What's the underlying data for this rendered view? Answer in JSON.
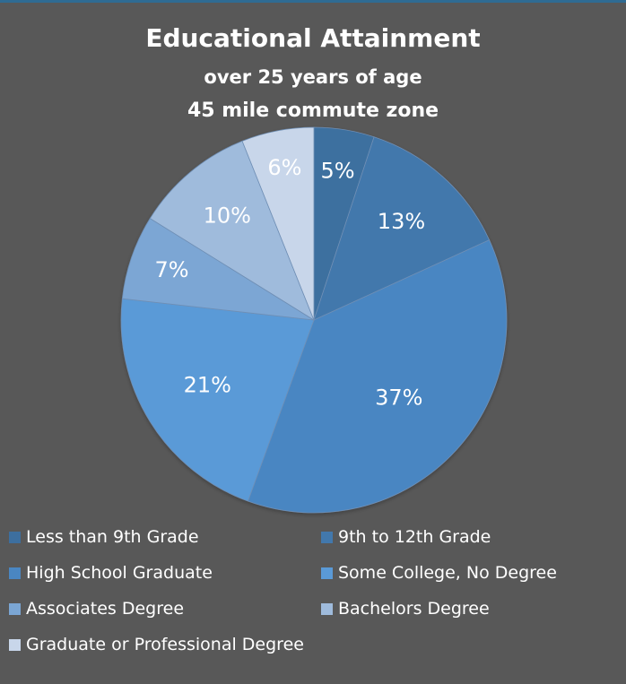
{
  "chart_data": {
    "type": "pie",
    "title": "Educational Attainment",
    "subtitle_lines": [
      "over 25 years of age",
      "45 mile commute zone"
    ],
    "categories": [
      "Less than 9th Grade",
      "9th to 12th Grade",
      "High School Graduate",
      "Some College, No Degree",
      "Associates Degree",
      "Bachelors Degree",
      "Graduate or Professional Degree"
    ],
    "values": [
      5,
      13,
      37,
      21,
      7,
      10,
      6
    ],
    "data_labels": [
      "5%",
      "13%",
      "37%",
      "21%",
      "7%",
      "10%",
      "6%"
    ],
    "colors": [
      "#3d6f9f",
      "#4278ac",
      "#4a86c2",
      "#5a9ad7",
      "#7ba6d4",
      "#9fbbdc",
      "#c8d6ea"
    ],
    "legend_position": "bottom"
  }
}
